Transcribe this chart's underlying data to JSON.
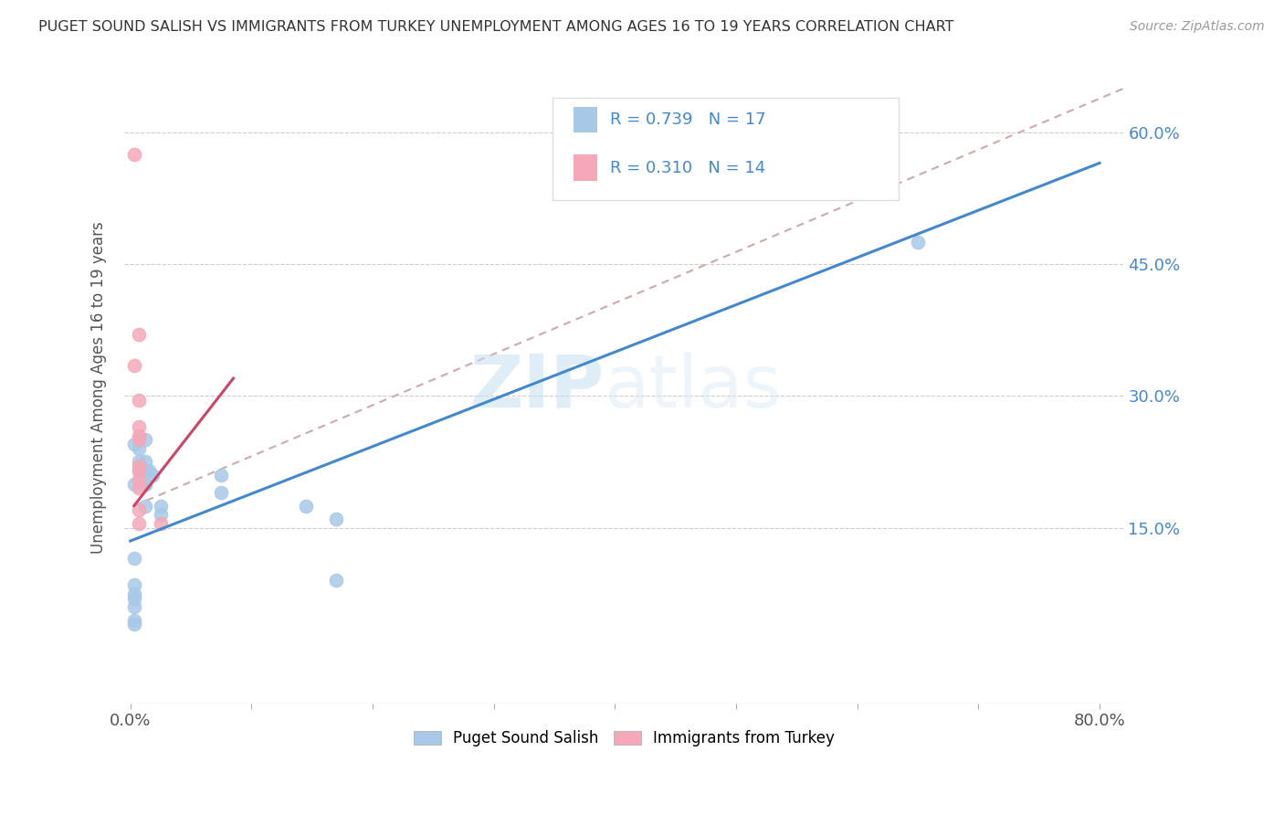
{
  "title": "PUGET SOUND SALISH VS IMMIGRANTS FROM TURKEY UNEMPLOYMENT AMONG AGES 16 TO 19 YEARS CORRELATION CHART",
  "source": "Source: ZipAtlas.com",
  "ylabel": "Unemployment Among Ages 16 to 19 years",
  "xlim": [
    -0.005,
    0.82
  ],
  "ylim": [
    -0.05,
    0.67
  ],
  "xtick_positions": [
    0.0,
    0.1,
    0.2,
    0.3,
    0.4,
    0.5,
    0.6,
    0.7,
    0.8
  ],
  "xticklabels": [
    "0.0%",
    "",
    "",
    "",
    "",
    "",
    "",
    "",
    "80.0%"
  ],
  "ytick_positions": [
    0.15,
    0.3,
    0.45,
    0.6
  ],
  "yticklabels": [
    "15.0%",
    "30.0%",
    "45.0%",
    "60.0%"
  ],
  "legend_labels": [
    "Puget Sound Salish",
    "Immigrants from Turkey"
  ],
  "blue_color": "#a8c8e8",
  "pink_color": "#f4a8b8",
  "blue_line_color": "#4488cc",
  "pink_solid_color": "#cc4466",
  "pink_dash_color": "#ccaaaa",
  "watermark_zip": "ZIP",
  "watermark_atlas": "atlas",
  "blue_scatter": [
    [
      0.003,
      0.245
    ],
    [
      0.003,
      0.2
    ],
    [
      0.007,
      0.24
    ],
    [
      0.007,
      0.225
    ],
    [
      0.007,
      0.215
    ],
    [
      0.012,
      0.25
    ],
    [
      0.012,
      0.225
    ],
    [
      0.012,
      0.215
    ],
    [
      0.012,
      0.2
    ],
    [
      0.012,
      0.175
    ],
    [
      0.012,
      0.2
    ],
    [
      0.015,
      0.215
    ],
    [
      0.018,
      0.21
    ],
    [
      0.025,
      0.175
    ],
    [
      0.025,
      0.165
    ],
    [
      0.075,
      0.21
    ],
    [
      0.075,
      0.19
    ],
    [
      0.145,
      0.175
    ],
    [
      0.17,
      0.16
    ],
    [
      0.003,
      0.115
    ],
    [
      0.003,
      0.085
    ],
    [
      0.003,
      0.075
    ],
    [
      0.003,
      0.07
    ],
    [
      0.003,
      0.06
    ],
    [
      0.003,
      0.045
    ],
    [
      0.003,
      0.04
    ],
    [
      0.17,
      0.09
    ],
    [
      0.65,
      0.475
    ]
  ],
  "pink_scatter": [
    [
      0.003,
      0.575
    ],
    [
      0.003,
      0.335
    ],
    [
      0.007,
      0.37
    ],
    [
      0.007,
      0.295
    ],
    [
      0.007,
      0.265
    ],
    [
      0.007,
      0.255
    ],
    [
      0.007,
      0.25
    ],
    [
      0.007,
      0.22
    ],
    [
      0.007,
      0.215
    ],
    [
      0.007,
      0.205
    ],
    [
      0.007,
      0.195
    ],
    [
      0.007,
      0.17
    ],
    [
      0.007,
      0.155
    ],
    [
      0.025,
      0.155
    ]
  ],
  "blue_trendline": [
    [
      0.0,
      0.135
    ],
    [
      0.8,
      0.565
    ]
  ],
  "pink_solid_trendline": [
    [
      0.003,
      0.175
    ],
    [
      0.085,
      0.32
    ]
  ],
  "pink_dash_trendline": [
    [
      0.003,
      0.175
    ],
    [
      0.82,
      0.65
    ]
  ]
}
